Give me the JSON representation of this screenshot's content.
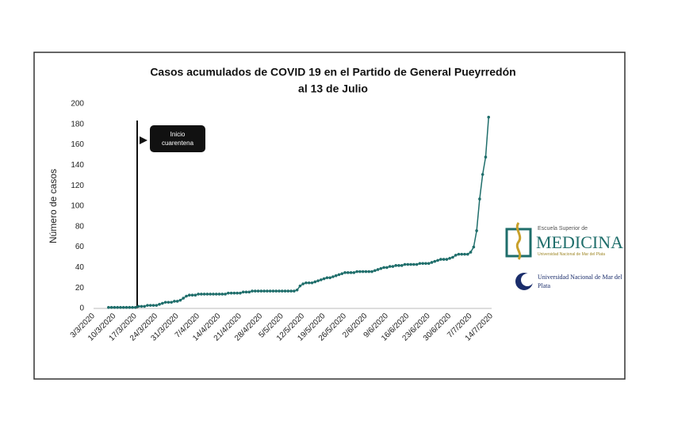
{
  "chart_data": {
    "type": "line",
    "title": [
      "Casos acumulados  de COVID 19 en el Partido de General Pueyrredón",
      "al 13 de Julio"
    ],
    "y_label": "Número de casos",
    "annotation": "Inicio cuarentena",
    "color": "#1f6e6b",
    "ylim": [
      0,
      200
    ],
    "yticks": [
      0,
      20,
      40,
      60,
      80,
      100,
      120,
      140,
      160,
      180,
      200
    ],
    "categories": [
      "3/3/2020",
      null,
      null,
      null,
      null,
      null,
      null,
      "10/3/2020",
      null,
      null,
      null,
      null,
      null,
      null,
      "17/3/2020",
      null,
      null,
      null,
      null,
      null,
      null,
      "24/3/2020",
      null,
      null,
      null,
      null,
      null,
      null,
      "31/3/2020",
      null,
      null,
      null,
      null,
      null,
      null,
      "7/4/2020",
      null,
      null,
      null,
      null,
      null,
      null,
      "14/4/2020",
      null,
      null,
      null,
      null,
      null,
      null,
      "21/4/2020",
      null,
      null,
      null,
      null,
      null,
      null,
      "28/4/2020",
      null,
      null,
      null,
      null,
      null,
      null,
      "5/5/2020",
      null,
      null,
      null,
      null,
      null,
      null,
      "12/5/2020",
      null,
      null,
      null,
      null,
      null,
      null,
      "19/5/2020",
      null,
      null,
      null,
      null,
      null,
      null,
      "26/5/2020",
      null,
      null,
      null,
      null,
      null,
      null,
      "2/6/2020",
      null,
      null,
      null,
      null,
      null,
      null,
      "9/6/2020",
      null,
      null,
      null,
      null,
      null,
      null,
      "16/6/2020",
      null,
      null,
      null,
      null,
      null,
      null,
      "23/6/2020",
      null,
      null,
      null,
      null,
      null,
      null,
      "30/6/2020",
      null,
      null,
      null,
      null,
      null,
      null,
      "7/7/2020",
      null,
      null,
      null,
      null,
      null,
      null,
      "14/7/2020"
    ],
    "values": [
      null,
      null,
      null,
      null,
      null,
      1,
      1,
      1,
      1,
      1,
      1,
      1,
      1,
      1,
      1,
      2,
      2,
      2,
      3,
      3,
      3,
      3,
      4,
      5,
      6,
      6,
      6,
      7,
      7,
      8,
      10,
      12,
      13,
      13,
      13,
      14,
      14,
      14,
      14,
      14,
      14,
      14,
      14,
      14,
      14,
      15,
      15,
      15,
      15,
      15,
      16,
      16,
      16,
      17,
      17,
      17,
      17,
      17,
      17,
      17,
      17,
      17,
      17,
      17,
      17,
      17,
      17,
      17,
      18,
      22,
      24,
      25,
      25,
      25,
      26,
      27,
      28,
      29,
      30,
      30,
      31,
      32,
      33,
      34,
      35,
      35,
      35,
      35,
      36,
      36,
      36,
      36,
      36,
      36,
      37,
      38,
      39,
      40,
      40,
      41,
      41,
      42,
      42,
      42,
      43,
      43,
      43,
      43,
      43,
      44,
      44,
      44,
      44,
      45,
      46,
      47,
      48,
      48,
      48,
      49,
      50,
      52,
      53,
      53,
      53,
      53,
      55,
      60,
      76,
      107,
      131,
      148,
      187,
      null
    ]
  },
  "logos": [
    "Escuela Superior de",
    "MEDICINA",
    "Universidad Nacional de Mar del Plata",
    "Universidad Nacional de Mar del Plata"
  ]
}
